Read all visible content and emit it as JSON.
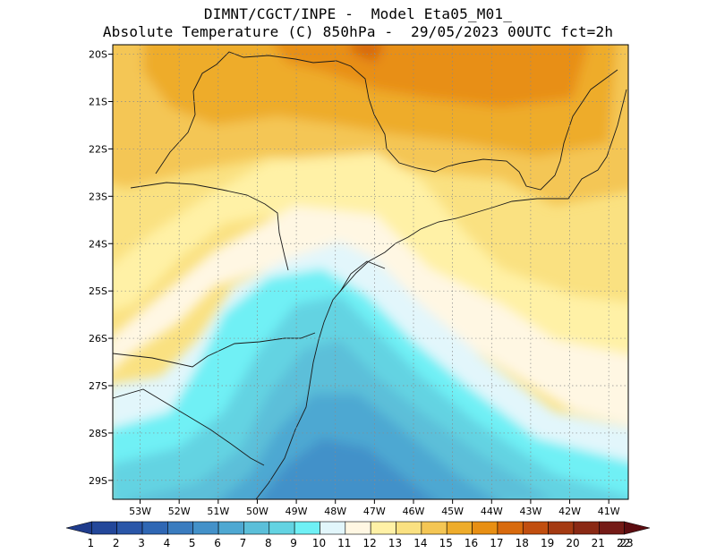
{
  "header": {
    "line1": "DIMNT/CGCT/INPE -  Model Eta05_M01_",
    "line2": "Absolute Temperature (C) 850hPa -  29/05/2023 00UTC fct=2h"
  },
  "map": {
    "lon_range": [
      -53.7,
      -40.5
    ],
    "lat_range": [
      -29.4,
      -19.8
    ],
    "lat_ticks": [
      "20S",
      "21S",
      "22S",
      "23S",
      "24S",
      "25S",
      "26S",
      "27S",
      "28S",
      "29S"
    ],
    "lat_values": [
      -20,
      -21,
      -22,
      -23,
      -24,
      -25,
      -26,
      -27,
      -28,
      -29
    ],
    "lon_ticks": [
      "53W",
      "52W",
      "51W",
      "50W",
      "49W",
      "48W",
      "47W",
      "46W",
      "45W",
      "44W",
      "43W",
      "42W",
      "41W"
    ],
    "lon_values": [
      -53,
      -52,
      -51,
      -50,
      -49,
      -48,
      -47,
      -46,
      -45,
      -44,
      -43,
      -42,
      -41
    ],
    "grid": "dotted"
  },
  "colorbar": {
    "labels": [
      "1",
      "2",
      "3",
      "4",
      "5",
      "6",
      "7",
      "8",
      "9",
      "10",
      "11",
      "12",
      "13",
      "14",
      "15",
      "16",
      "17",
      "18",
      "19",
      "20",
      "21",
      "22",
      "23"
    ],
    "colors": [
      "#1f3c8c",
      "#23479a",
      "#2a56a8",
      "#2f67b4",
      "#3a7cbf",
      "#4391c9",
      "#4ea8d2",
      "#5bbfd9",
      "#63d3e2",
      "#6ff0f5",
      "#e2f6fb",
      "#fff7e3",
      "#fff1a6",
      "#fae181",
      "#f4c654",
      "#eeac2b",
      "#e88f13",
      "#d86a0d",
      "#c14e0f",
      "#a43a12",
      "#8a2914",
      "#741a16",
      "#5c0c10"
    ]
  }
}
